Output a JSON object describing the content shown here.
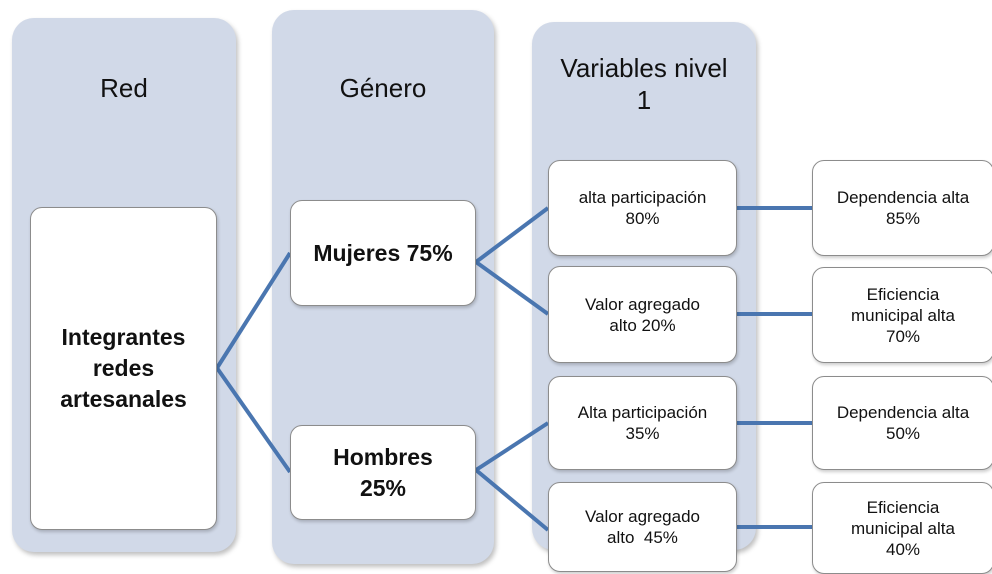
{
  "columns": [
    {
      "title": [
        "Red"
      ]
    },
    {
      "title": [
        "Género"
      ]
    },
    {
      "title": [
        "Variables nivel",
        "1"
      ]
    }
  ],
  "nodes": [
    {
      "lines": [
        "Integrantes",
        "redes",
        "artesanales"
      ]
    },
    {
      "lines": [
        "Mujeres 75%"
      ]
    },
    {
      "lines": [
        "Hombres",
        "25%"
      ]
    },
    {
      "lines": [
        "alta participación",
        "80%"
      ]
    },
    {
      "lines": [
        "Valor agregado",
        "alto 20%"
      ]
    },
    {
      "lines": [
        "Alta participación",
        "35%"
      ]
    },
    {
      "lines": [
        "Valor agregado",
        "alto  45%"
      ]
    },
    {
      "lines": [
        "Dependencia alta",
        "85%"
      ]
    },
    {
      "lines": [
        "Eficiencia",
        "municipal alta",
        "70%"
      ]
    },
    {
      "lines": [
        "Dependencia alta",
        "50%"
      ]
    },
    {
      "lines": [
        "Eficiencia",
        "municipal alta",
        "40%"
      ]
    }
  ]
}
